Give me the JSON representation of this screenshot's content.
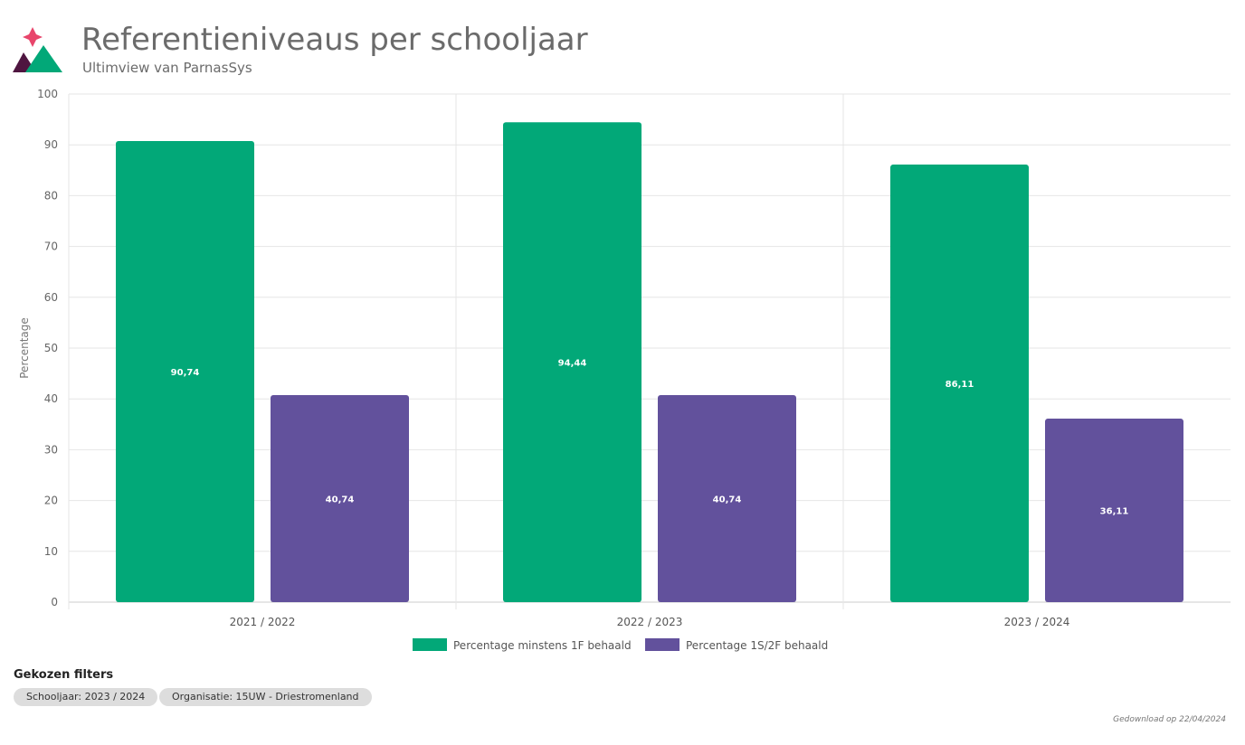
{
  "header": {
    "title": "Referentieniveaus per schooljaar",
    "subtitle": "Ultimview van ParnasSys"
  },
  "chart_data": {
    "type": "bar",
    "categories": [
      "2021 / 2022",
      "2022 / 2023",
      "2023 / 2024"
    ],
    "series": [
      {
        "name": "Percentage minstens 1F behaald",
        "color": "#02a878",
        "values": [
          90.74,
          94.44,
          86.11
        ],
        "labels": [
          "90,74",
          "94,44",
          "86,11"
        ]
      },
      {
        "name": "Percentage 1S/2F behaald",
        "color": "#62519c",
        "values": [
          40.74,
          40.74,
          36.11
        ],
        "labels": [
          "40,74",
          "40,74",
          "36,11"
        ]
      }
    ],
    "ylabel": "Percentage",
    "xlabel": "",
    "ylim": [
      0,
      100
    ],
    "yticks": [
      "0",
      "10",
      "20",
      "30",
      "40",
      "50",
      "60",
      "70",
      "80",
      "90",
      "100"
    ],
    "grid": true,
    "legend": "bottom"
  },
  "filters": {
    "title": "Gekozen filters",
    "chips": [
      "Schooljaar: 2023 / 2024",
      "Organisatie: 15UW - Driestromenland"
    ]
  },
  "footer": {
    "download": "Gedownload op 22/04/2024"
  }
}
